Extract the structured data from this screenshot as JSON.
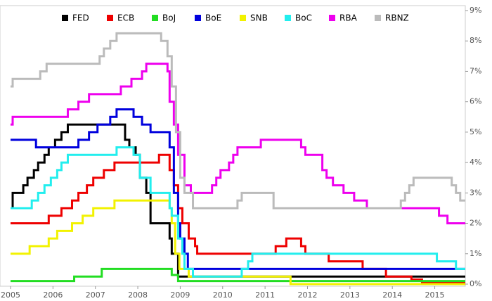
{
  "chart_data": {
    "type": "line",
    "step": "after",
    "xlim": [
      2005,
      2015.72
    ],
    "ylim": [
      0,
      9
    ],
    "xticks": [
      2005,
      2006,
      2007,
      2008,
      2009,
      2010,
      2011,
      2012,
      2013,
      2014,
      2015
    ],
    "yticks": [
      {
        "value": 0,
        "label": "0%"
      },
      {
        "value": 1,
        "label": "1%"
      },
      {
        "value": 2,
        "label": "2%"
      },
      {
        "value": 3,
        "label": "3%"
      },
      {
        "value": 4,
        "label": "4%"
      },
      {
        "value": 5,
        "label": "5%"
      },
      {
        "value": 6,
        "label": "6%"
      },
      {
        "value": 7,
        "label": "7%"
      },
      {
        "value": 8,
        "label": "8%"
      },
      {
        "value": 9,
        "label": "9%"
      }
    ],
    "series": [
      {
        "name": "FED",
        "color": "#000000",
        "x": [
          2005.0,
          2005.05,
          2005.3,
          2005.4,
          2005.55,
          2005.65,
          2005.8,
          2005.9,
          2006.05,
          2006.2,
          2006.35,
          2007.7,
          2007.8,
          2007.95,
          2008.05,
          2008.2,
          2008.3,
          2008.75,
          2008.8,
          2008.95
        ],
        "values": [
          2.5,
          3,
          3.25,
          3.5,
          3.75,
          4,
          4.25,
          4.5,
          4.75,
          5,
          5.25,
          4.75,
          4.5,
          4.25,
          3.5,
          3,
          2,
          1.5,
          1,
          0.25
        ]
      },
      {
        "name": "ECB",
        "color": "#ee0000",
        "x": [
          2005.0,
          2005.9,
          2006.2,
          2006.45,
          2006.6,
          2006.8,
          2006.95,
          2007.2,
          2007.45,
          2008.5,
          2008.75,
          2008.85,
          2008.95,
          2009.05,
          2009.2,
          2009.35,
          2009.4,
          2011.25,
          2011.5,
          2011.85,
          2011.95,
          2012.5,
          2013.3,
          2013.85,
          2014.45,
          2014.7
        ],
        "values": [
          2,
          2.25,
          2.5,
          2.75,
          3,
          3.25,
          3.5,
          3.75,
          4,
          4.25,
          3.75,
          3.25,
          2.5,
          2,
          1.5,
          1.25,
          1,
          1.25,
          1.5,
          1.25,
          1,
          0.75,
          0.5,
          0.25,
          0.15,
          0.05
        ]
      },
      {
        "name": "BoJ",
        "color": "#22dd22",
        "x": [
          2005.0,
          2006.5,
          2007.15,
          2008.8,
          2008.95
        ],
        "values": [
          0.1,
          0.25,
          0.5,
          0.3,
          0.1
        ]
      },
      {
        "name": "BoE",
        "color": "#0000dd",
        "x": [
          2005.0,
          2005.6,
          2006.6,
          2006.85,
          2007.05,
          2007.35,
          2007.5,
          2007.9,
          2008.1,
          2008.3,
          2008.75,
          2008.85,
          2008.95,
          2009.0,
          2009.1,
          2009.18
        ],
        "values": [
          4.75,
          4.5,
          4.75,
          5,
          5.25,
          5.5,
          5.75,
          5.5,
          5.25,
          5,
          4.5,
          3,
          2,
          1.5,
          1,
          0.5
        ]
      },
      {
        "name": "SNB",
        "color": "#f2f200",
        "x": [
          2005.0,
          2005.45,
          2005.9,
          2006.1,
          2006.45,
          2006.7,
          2006.95,
          2007.45,
          2008.75,
          2008.8,
          2008.88,
          2008.98,
          2009.2,
          2011.6
        ],
        "values": [
          1,
          1.25,
          1.5,
          1.75,
          2,
          2.25,
          2.5,
          2.75,
          2.5,
          2,
          1,
          0.5,
          0.25,
          0
        ]
      },
      {
        "name": "BoC",
        "color": "#22eeee",
        "x": [
          2005.0,
          2005.5,
          2005.65,
          2005.8,
          2005.95,
          2006.1,
          2006.2,
          2006.35,
          2007.5,
          2007.9,
          2008.05,
          2008.3,
          2008.75,
          2008.8,
          2008.95,
          2009.05,
          2009.1,
          2009.3,
          2010.45,
          2010.6,
          2010.7,
          2015.05,
          2015.5
        ],
        "values": [
          2.5,
          2.75,
          3,
          3.25,
          3.5,
          3.75,
          4,
          4.25,
          4.5,
          4.25,
          3.5,
          3,
          2.5,
          2.25,
          1.5,
          1,
          0.5,
          0.25,
          0.5,
          0.75,
          1,
          0.75,
          0.5
        ]
      },
      {
        "name": "RBA",
        "color": "#ee00ee",
        "x": [
          2005.0,
          2005.05,
          2006.35,
          2006.6,
          2006.85,
          2007.6,
          2007.85,
          2008.1,
          2008.2,
          2008.7,
          2008.75,
          2008.85,
          2008.95,
          2009.1,
          2009.25,
          2009.75,
          2009.85,
          2009.95,
          2010.15,
          2010.25,
          2010.35,
          2010.9,
          2011.85,
          2011.95,
          2012.35,
          2012.45,
          2012.6,
          2012.85,
          2013.1,
          2013.4,
          2015.1,
          2015.3
        ],
        "values": [
          5.25,
          5.5,
          5.75,
          6,
          6.25,
          6.5,
          6.75,
          7,
          7.25,
          7,
          6,
          5.25,
          4.25,
          3.25,
          3,
          3.25,
          3.5,
          3.75,
          4,
          4.25,
          4.5,
          4.75,
          4.5,
          4.25,
          3.75,
          3.5,
          3.25,
          3,
          2.75,
          2.5,
          2.25,
          2
        ]
      },
      {
        "name": "RBNZ",
        "color": "#bbbbbb",
        "x": [
          2005.0,
          2005.05,
          2005.7,
          2005.85,
          2007.1,
          2007.2,
          2007.35,
          2007.5,
          2008.55,
          2008.7,
          2008.8,
          2008.9,
          2009.0,
          2009.1,
          2009.3,
          2010.35,
          2010.45,
          2011.2,
          2014.2,
          2014.3,
          2014.4,
          2014.5,
          2015.4,
          2015.5,
          2015.6
        ],
        "values": [
          6.5,
          6.75,
          7,
          7.25,
          7.5,
          7.75,
          8,
          8.25,
          8,
          7.5,
          6.5,
          5,
          3.5,
          3,
          2.5,
          2.75,
          3,
          2.5,
          2.75,
          3,
          3.25,
          3.5,
          3.25,
          3,
          2.75
        ]
      }
    ]
  }
}
